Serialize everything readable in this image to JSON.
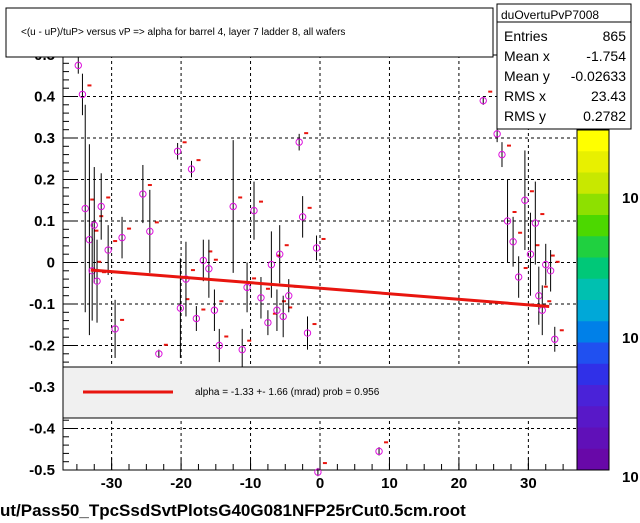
{
  "title": "<(u - uP)/tuP> versus   vP => alpha for barrel 4, layer 7 ladder 8, all wafers",
  "stats": {
    "name": "duOvertuPvP7008",
    "rows": [
      {
        "label": "Entries",
        "value": "865"
      },
      {
        "label": "Mean x",
        "value": "-1.754"
      },
      {
        "label": "Mean y",
        "value": "-0.02633"
      },
      {
        "label": "RMS x",
        "value": "23.43"
      },
      {
        "label": "RMS y",
        "value": "0.2782"
      }
    ]
  },
  "legend": {
    "text": "alpha =   -1.33 +-  1.66 (mrad) prob = 0.956",
    "line_color": "#e8150f"
  },
  "footer": "ut/Pass50_TpcSsdSvtPlotsG40G081NFP25rCut0.5cm.root",
  "colorbar_labels": [
    "10",
    "10",
    "10"
  ],
  "colors": {
    "fit": "#e8150f",
    "points": "#dd11dd",
    "marker": "#e8150f"
  },
  "chart_data": {
    "type": "scatter",
    "xlim": [
      -37,
      37
    ],
    "ylim": [
      -0.5,
      0.5
    ],
    "x_ticks": [
      "-30",
      "-20",
      "-10",
      "0",
      "10",
      "20",
      "30"
    ],
    "y_ticks": [
      "-0.5",
      "-0.4",
      "-0.3",
      "-0.2",
      "-0.1",
      "0",
      "0.1",
      "0.2",
      "0.3",
      "0.4",
      "0.5"
    ],
    "grid": true,
    "fit_line": {
      "x": [
        -33,
        33
      ],
      "y": [
        -0.018,
        -0.106
      ]
    },
    "points": [
      {
        "x": -34.8,
        "y": 0.475,
        "err": 0.02
      },
      {
        "x": -34.2,
        "y": 0.405,
        "err": 0.05
      },
      {
        "x": -33.8,
        "y": 0.13,
        "err": 0.25
      },
      {
        "x": -33.2,
        "y": 0.055,
        "err": 0.23
      },
      {
        "x": -32.8,
        "y": -0.02,
        "err": 0.12
      },
      {
        "x": -32.5,
        "y": 0.09,
        "err": 0.14
      },
      {
        "x": -32.1,
        "y": -0.045,
        "err": 0.1
      },
      {
        "x": -31.5,
        "y": 0.135,
        "err": 0.08
      },
      {
        "x": -30.5,
        "y": 0.03,
        "err": 0.06
      },
      {
        "x": -29.5,
        "y": -0.16,
        "err": 0.07
      },
      {
        "x": -28.5,
        "y": 0.06,
        "err": 0.05
      },
      {
        "x": -25.5,
        "y": 0.165,
        "err": 0.07
      },
      {
        "x": -24.5,
        "y": 0.075,
        "err": 0.1
      },
      {
        "x": -23.2,
        "y": -0.22,
        "err": 0.01
      },
      {
        "x": -20.5,
        "y": 0.268,
        "err": 0.02
      },
      {
        "x": -20.1,
        "y": -0.11,
        "err": 0.12
      },
      {
        "x": -19.3,
        "y": -0.04,
        "err": 0.09
      },
      {
        "x": -18.5,
        "y": 0.225,
        "err": 0.02
      },
      {
        "x": -17.8,
        "y": -0.135,
        "err": 0.03
      },
      {
        "x": -16.8,
        "y": 0.005,
        "err": 0.05
      },
      {
        "x": -16.0,
        "y": -0.015,
        "err": 0.07
      },
      {
        "x": -15.2,
        "y": -0.115,
        "err": 0.05
      },
      {
        "x": -14.5,
        "y": -0.2,
        "err": 0.04
      },
      {
        "x": -12.5,
        "y": 0.135,
        "err": 0.16
      },
      {
        "x": -11.2,
        "y": -0.21,
        "err": 0.05
      },
      {
        "x": -10.5,
        "y": -0.06,
        "err": 0.06
      },
      {
        "x": -9.5,
        "y": 0.125,
        "err": 0.07
      },
      {
        "x": -8.5,
        "y": -0.085,
        "err": 0.05
      },
      {
        "x": -7.5,
        "y": -0.145,
        "err": 0.03
      },
      {
        "x": -7.0,
        "y": -0.005,
        "err": 0.08
      },
      {
        "x": -6.2,
        "y": -0.115,
        "err": 0.05
      },
      {
        "x": -5.8,
        "y": 0.02,
        "err": 0.07
      },
      {
        "x": -5.3,
        "y": -0.13,
        "err": 0.05
      },
      {
        "x": -4.5,
        "y": -0.08,
        "err": 0.04
      },
      {
        "x": -3.0,
        "y": 0.29,
        "err": 0.02
      },
      {
        "x": -2.5,
        "y": 0.11,
        "err": 0.05
      },
      {
        "x": -1.8,
        "y": -0.17,
        "err": 0.04
      },
      {
        "x": -0.5,
        "y": 0.035,
        "err": 0.03
      },
      {
        "x": -0.3,
        "y": -0.505,
        "err": 0.01
      },
      {
        "x": 8.5,
        "y": -0.455,
        "err": 0.01
      },
      {
        "x": 23.5,
        "y": 0.39,
        "err": 0.01
      },
      {
        "x": 25.5,
        "y": 0.31,
        "err": 0.02
      },
      {
        "x": 26.2,
        "y": 0.26,
        "err": 0.03
      },
      {
        "x": 27.0,
        "y": 0.1,
        "err": 0.1
      },
      {
        "x": 27.8,
        "y": 0.05,
        "err": 0.06
      },
      {
        "x": 28.6,
        "y": -0.035,
        "err": 0.05
      },
      {
        "x": 29.5,
        "y": 0.15,
        "err": 0.12
      },
      {
        "x": 30.3,
        "y": 0.02,
        "err": 0.1
      },
      {
        "x": 31.0,
        "y": 0.095,
        "err": 0.1
      },
      {
        "x": 31.5,
        "y": -0.08,
        "err": 0.07
      },
      {
        "x": 32.0,
        "y": -0.115,
        "err": 0.06
      },
      {
        "x": 32.5,
        "y": -0.005,
        "err": 0.05
      },
      {
        "x": 33.2,
        "y": -0.02,
        "err": 0.05
      },
      {
        "x": 33.8,
        "y": -0.185,
        "err": 0.03
      }
    ]
  }
}
